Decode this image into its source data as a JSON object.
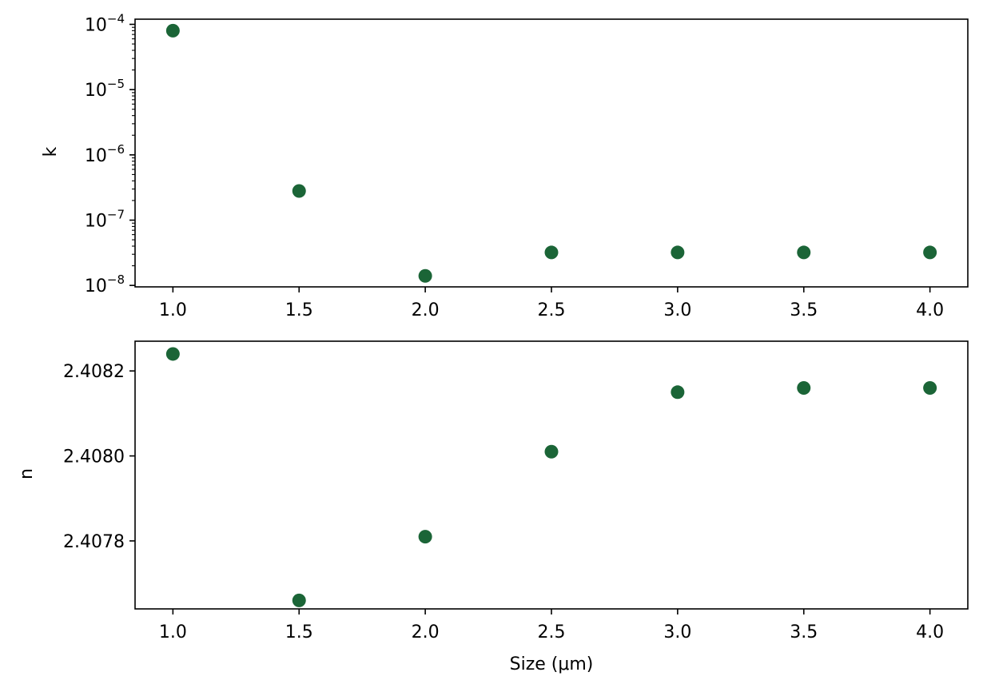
{
  "chart_data": [
    {
      "type": "scatter",
      "panel": "top",
      "xlabel": "",
      "ylabel": "k",
      "yscale": "log",
      "marker_color": "#1b6537",
      "x": [
        1.0,
        1.5,
        2.0,
        2.5,
        3.0,
        3.5,
        4.0
      ],
      "y": [
        8e-05,
        2.8e-07,
        1.4e-08,
        3.2e-08,
        3.2e-08,
        3.2e-08,
        3.2e-08
      ],
      "xlim": [
        0.85,
        4.15
      ],
      "ylim": [
        9.5e-09,
        0.00012
      ],
      "xticks": [
        1.0,
        1.5,
        2.0,
        2.5,
        3.0,
        3.5,
        4.0
      ],
      "xtick_labels": [
        "1.0",
        "1.5",
        "2.0",
        "2.5",
        "3.0",
        "3.5",
        "4.0"
      ],
      "yticks": [
        1e-08,
        1e-07,
        1e-06,
        1e-05,
        0.0001
      ],
      "ytick_labels": [
        {
          "base": "10",
          "exp": "−8"
        },
        {
          "base": "10",
          "exp": "−7"
        },
        {
          "base": "10",
          "exp": "−6"
        },
        {
          "base": "10",
          "exp": "−5"
        },
        {
          "base": "10",
          "exp": "−4"
        }
      ],
      "grid": false
    },
    {
      "type": "scatter",
      "panel": "bottom",
      "xlabel": "Size (μm)",
      "ylabel": "n",
      "yscale": "linear",
      "marker_color": "#1b6537",
      "x": [
        1.0,
        1.5,
        2.0,
        2.5,
        3.0,
        3.5,
        4.0
      ],
      "y": [
        2.40824,
        2.40766,
        2.40781,
        2.40801,
        2.40815,
        2.40816,
        2.40816
      ],
      "xlim": [
        0.85,
        4.15
      ],
      "ylim": [
        2.40764,
        2.40827
      ],
      "xticks": [
        1.0,
        1.5,
        2.0,
        2.5,
        3.0,
        3.5,
        4.0
      ],
      "xtick_labels": [
        "1.0",
        "1.5",
        "2.0",
        "2.5",
        "3.0",
        "3.5",
        "4.0"
      ],
      "yticks": [
        2.4078,
        2.408,
        2.4082
      ],
      "ytick_labels": [
        "2.4078",
        "2.4080",
        "2.4082"
      ],
      "grid": false
    }
  ]
}
